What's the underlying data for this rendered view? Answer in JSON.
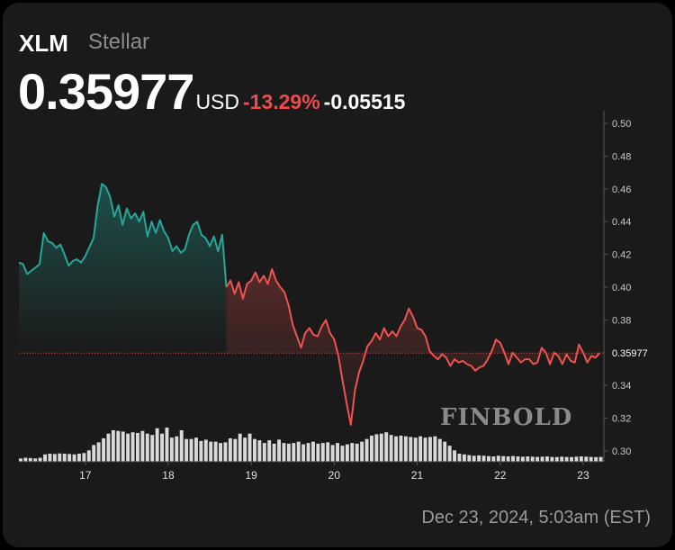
{
  "ticker": {
    "symbol": "XLM",
    "name": "Stellar",
    "price": "0.35977",
    "currency": "USD",
    "change_pct": "-13.29%",
    "change_abs": "-0.05515",
    "timestamp": "Dec 23, 2024, 5:03am (EST)"
  },
  "watermark": "FINBOLD",
  "colors": {
    "background": "#1a1a1a",
    "up": "#26a69a",
    "down": "#ef5350",
    "volume": "#d9d9d9"
  },
  "chart_data": {
    "type": "line",
    "title": "",
    "xlabel": "",
    "ylabel": "",
    "ylim": [
      0.3,
      0.5
    ],
    "yticks": [
      "0.50",
      "0.48",
      "0.46",
      "0.44",
      "0.42",
      "0.40",
      "0.38",
      "0.36",
      "0.34",
      "0.32",
      "0.30"
    ],
    "xlim": [
      16.2,
      23.25
    ],
    "xticks": [
      {
        "value": 17,
        "label": "17"
      },
      {
        "value": 18,
        "label": "18"
      },
      {
        "value": 19,
        "label": "19"
      },
      {
        "value": 20,
        "label": "20"
      },
      {
        "value": 21,
        "label": "21"
      },
      {
        "value": 22,
        "label": "22"
      },
      {
        "value": 23,
        "label": "23"
      }
    ],
    "reference_price": 0.35977,
    "price_label": "0.35977",
    "series": [
      {
        "values": [
          [
            16.2,
            0.415
          ],
          [
            16.25,
            0.414
          ],
          [
            16.3,
            0.408
          ],
          [
            16.35,
            0.41
          ],
          [
            16.45,
            0.414
          ],
          [
            16.5,
            0.433
          ],
          [
            16.55,
            0.428
          ],
          [
            16.6,
            0.427
          ],
          [
            16.65,
            0.424
          ],
          [
            16.7,
            0.426
          ],
          [
            16.75,
            0.42
          ],
          [
            16.8,
            0.413
          ],
          [
            16.85,
            0.416
          ],
          [
            16.9,
            0.417
          ],
          [
            16.95,
            0.415
          ],
          [
            17.0,
            0.419
          ],
          [
            17.1,
            0.43
          ],
          [
            17.15,
            0.45
          ],
          [
            17.2,
            0.463
          ],
          [
            17.25,
            0.461
          ],
          [
            17.3,
            0.455
          ],
          [
            17.35,
            0.443
          ],
          [
            17.4,
            0.45
          ],
          [
            17.45,
            0.438
          ],
          [
            17.5,
            0.448
          ],
          [
            17.55,
            0.442
          ],
          [
            17.6,
            0.445
          ],
          [
            17.65,
            0.44
          ],
          [
            17.7,
            0.446
          ],
          [
            17.75,
            0.431
          ],
          [
            17.8,
            0.44
          ],
          [
            17.85,
            0.433
          ],
          [
            17.9,
            0.441
          ],
          [
            17.95,
            0.434
          ],
          [
            18.0,
            0.43
          ],
          [
            18.05,
            0.422
          ],
          [
            18.1,
            0.425
          ],
          [
            18.15,
            0.421
          ],
          [
            18.2,
            0.423
          ],
          [
            18.25,
            0.432
          ],
          [
            18.3,
            0.438
          ],
          [
            18.35,
            0.44
          ],
          [
            18.4,
            0.432
          ],
          [
            18.45,
            0.43
          ],
          [
            18.5,
            0.425
          ],
          [
            18.55,
            0.431
          ],
          [
            18.6,
            0.422
          ],
          [
            18.65,
            0.432
          ],
          [
            18.7,
            0.4
          ],
          [
            18.75,
            0.404
          ],
          [
            18.8,
            0.396
          ],
          [
            18.85,
            0.403
          ],
          [
            18.9,
            0.393
          ],
          [
            18.95,
            0.402
          ],
          [
            19.0,
            0.404
          ],
          [
            19.05,
            0.409
          ],
          [
            19.1,
            0.403
          ],
          [
            19.15,
            0.407
          ],
          [
            19.2,
            0.402
          ],
          [
            19.25,
            0.411
          ],
          [
            19.3,
            0.404
          ],
          [
            19.35,
            0.4
          ],
          [
            19.4,
            0.397
          ],
          [
            19.45,
            0.389
          ],
          [
            19.5,
            0.377
          ],
          [
            19.55,
            0.37
          ],
          [
            19.6,
            0.363
          ],
          [
            19.65,
            0.372
          ],
          [
            19.7,
            0.375
          ],
          [
            19.75,
            0.371
          ],
          [
            19.8,
            0.37
          ],
          [
            19.85,
            0.376
          ],
          [
            19.9,
            0.38
          ],
          [
            19.95,
            0.372
          ],
          [
            20.0,
            0.368
          ],
          [
            20.05,
            0.358
          ],
          [
            20.1,
            0.343
          ],
          [
            20.15,
            0.329
          ],
          [
            20.2,
            0.316
          ],
          [
            20.25,
            0.337
          ],
          [
            20.3,
            0.348
          ],
          [
            20.35,
            0.355
          ],
          [
            20.4,
            0.364
          ],
          [
            20.45,
            0.367
          ],
          [
            20.5,
            0.372
          ],
          [
            20.55,
            0.368
          ],
          [
            20.6,
            0.375
          ],
          [
            20.65,
            0.37
          ],
          [
            20.7,
            0.373
          ],
          [
            20.75,
            0.37
          ],
          [
            20.8,
            0.376
          ],
          [
            20.85,
            0.38
          ],
          [
            20.9,
            0.387
          ],
          [
            20.95,
            0.382
          ],
          [
            21.0,
            0.375
          ],
          [
            21.05,
            0.374
          ],
          [
            21.1,
            0.37
          ],
          [
            21.15,
            0.361
          ],
          [
            21.2,
            0.358
          ],
          [
            21.25,
            0.356
          ],
          [
            21.3,
            0.359
          ],
          [
            21.35,
            0.357
          ],
          [
            21.4,
            0.352
          ],
          [
            21.45,
            0.356
          ],
          [
            21.5,
            0.354
          ],
          [
            21.55,
            0.355
          ],
          [
            21.6,
            0.353
          ],
          [
            21.65,
            0.352
          ],
          [
            21.7,
            0.349
          ],
          [
            21.75,
            0.351
          ],
          [
            21.8,
            0.352
          ],
          [
            21.85,
            0.356
          ],
          [
            21.9,
            0.361
          ],
          [
            21.95,
            0.368
          ],
          [
            22.0,
            0.366
          ],
          [
            22.05,
            0.36
          ],
          [
            22.1,
            0.353
          ],
          [
            22.15,
            0.36
          ],
          [
            22.2,
            0.357
          ],
          [
            22.25,
            0.354
          ],
          [
            22.3,
            0.356
          ],
          [
            22.35,
            0.356
          ],
          [
            22.4,
            0.353
          ],
          [
            22.45,
            0.354
          ],
          [
            22.5,
            0.363
          ],
          [
            22.55,
            0.36
          ],
          [
            22.6,
            0.353
          ],
          [
            22.65,
            0.36
          ],
          [
            22.7,
            0.358
          ],
          [
            22.75,
            0.353
          ],
          [
            22.8,
            0.359
          ],
          [
            22.85,
            0.355
          ],
          [
            22.9,
            0.354
          ],
          [
            22.95,
            0.365
          ],
          [
            23.0,
            0.36
          ],
          [
            23.05,
            0.354
          ],
          [
            23.1,
            0.358
          ],
          [
            23.15,
            0.357
          ],
          [
            23.2,
            0.36
          ]
        ]
      }
    ],
    "volume": [
      0.25,
      0.3,
      0.28,
      0.25,
      0.3,
      0.55,
      0.6,
      0.58,
      0.62,
      0.6,
      0.58,
      0.55,
      0.6,
      0.65,
      0.85,
      1.25,
      1.45,
      1.75,
      2.1,
      2.35,
      2.3,
      2.25,
      2.1,
      2.2,
      2.15,
      2.3,
      2.1,
      2.0,
      2.5,
      2.1,
      2.55,
      1.8,
      1.9,
      2.35,
      1.7,
      1.7,
      1.8,
      1.55,
      1.65,
      1.5,
      1.5,
      1.4,
      1.45,
      1.75,
      1.7,
      2.1,
      1.8,
      2.1,
      1.7,
      1.6,
      1.4,
      1.6,
      1.35,
      1.65,
      1.4,
      1.35,
      1.4,
      1.5,
      1.3,
      1.4,
      1.5,
      1.35,
      1.4,
      1.45,
      1.25,
      1.4,
      1.2,
      1.3,
      1.4,
      1.35,
      1.5,
      1.7,
      1.95,
      2.05,
      2.1,
      2.2,
      2.0,
      1.9,
      1.95,
      1.9,
      1.85,
      1.8,
      1.9,
      1.8,
      1.85,
      1.9,
      1.7,
      1.5,
      1.2,
      0.85,
      0.6,
      0.55,
      0.5,
      0.45,
      0.48,
      0.45,
      0.42,
      0.4,
      0.45,
      0.42,
      0.4,
      0.43,
      0.4,
      0.38,
      0.4,
      0.38,
      0.36,
      0.38,
      0.4,
      0.36,
      0.35,
      0.38,
      0.36,
      0.35,
      0.38,
      0.4,
      0.38,
      0.36,
      0.35,
      0.36
    ]
  }
}
